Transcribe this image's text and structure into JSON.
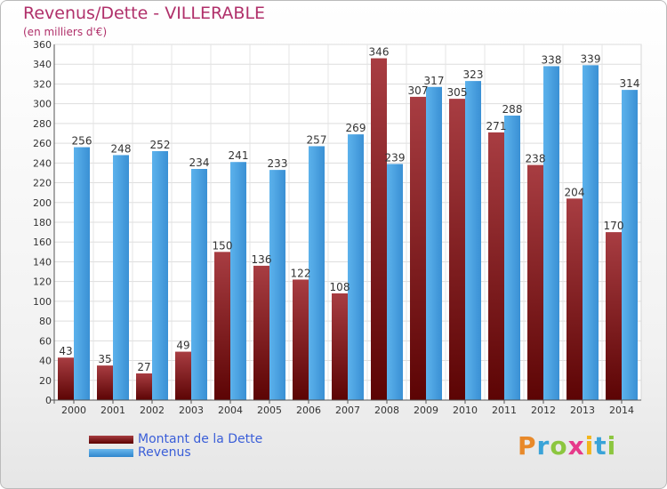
{
  "chart_data": {
    "type": "bar",
    "title": "Revenus/Dette - VILLERABLE",
    "subtitle": "(en milliers d'€)",
    "categories": [
      "2000",
      "2001",
      "2002",
      "2003",
      "2004",
      "2005",
      "2006",
      "2007",
      "2008",
      "2009",
      "2010",
      "2011",
      "2012",
      "2013",
      "2014"
    ],
    "series": [
      {
        "name": "Montant de la Dette",
        "values": [
          43,
          35,
          27,
          49,
          150,
          136,
          122,
          108,
          346,
          307,
          305,
          271,
          238,
          204,
          170
        ],
        "color": "#7a1a1e"
      },
      {
        "name": "Revenus",
        "values": [
          256,
          248,
          252,
          234,
          241,
          233,
          257,
          269,
          239,
          317,
          323,
          288,
          338,
          339,
          314
        ],
        "color": "#4aa3e6"
      }
    ],
    "ylim": [
      0,
      360
    ],
    "yticks": [
      0,
      20,
      40,
      60,
      80,
      100,
      120,
      140,
      160,
      180,
      200,
      220,
      240,
      260,
      280,
      300,
      320,
      340,
      360
    ],
    "grid": true,
    "legend": "bottom-left",
    "logo_text": "Proxiti"
  }
}
